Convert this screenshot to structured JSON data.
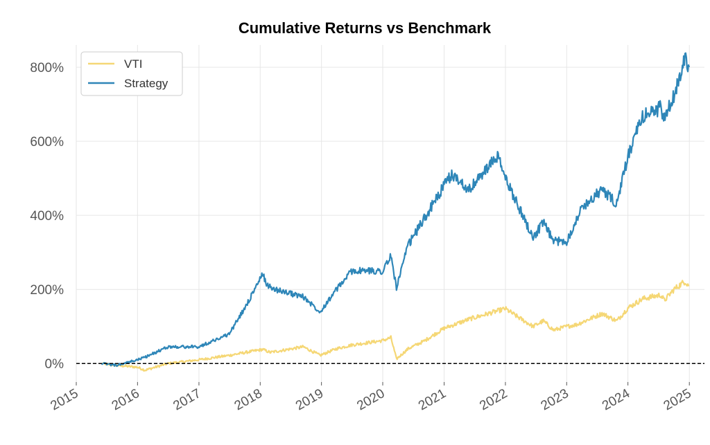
{
  "chart_data": {
    "type": "line",
    "title": "Cumulative Returns vs Benchmark",
    "xlabel": "",
    "ylabel": "",
    "x_ticks": [
      "2015",
      "2016",
      "2017",
      "2018",
      "2019",
      "2020",
      "2021",
      "2022",
      "2023",
      "2024",
      "2025"
    ],
    "y_ticks": [
      "0%",
      "200%",
      "400%",
      "600%",
      "800%"
    ],
    "xlim": [
      "2015-01-01",
      "2025-04-01"
    ],
    "ylim": [
      -50,
      860
    ],
    "grid": true,
    "legend": {
      "placement": "top-left"
    },
    "baseline": 0,
    "series": [
      {
        "name": "VTI",
        "color": "#f5d775",
        "x": [
          "2015-06-01",
          "2015-09-01",
          "2016-01-01",
          "2016-02-15",
          "2016-07-01",
          "2017-01-01",
          "2017-07-01",
          "2018-01-15",
          "2018-03-01",
          "2018-09-15",
          "2018-12-24",
          "2019-04-01",
          "2019-07-01",
          "2020-01-01",
          "2020-02-19",
          "2020-03-23",
          "2020-06-01",
          "2020-09-01",
          "2021-01-01",
          "2021-06-01",
          "2021-12-31",
          "2022-03-01",
          "2022-06-15",
          "2022-08-15",
          "2022-10-15",
          "2023-01-01",
          "2023-03-01",
          "2023-07-31",
          "2023-10-27",
          "2024-01-01",
          "2024-03-31",
          "2024-07-15",
          "2024-08-05",
          "2024-10-01",
          "2024-12-06",
          "2024-12-31"
        ],
        "values": [
          0,
          -5,
          -10,
          -18,
          0,
          10,
          22,
          38,
          30,
          45,
          22,
          40,
          50,
          62,
          70,
          12,
          40,
          60,
          95,
          120,
          148,
          130,
          100,
          115,
          90,
          100,
          105,
          135,
          115,
          150,
          175,
          185,
          170,
          200,
          222,
          210
        ]
      },
      {
        "name": "Strategy",
        "color": "#2e86b8",
        "x": [
          "2015-06-01",
          "2015-09-01",
          "2016-01-01",
          "2016-03-01",
          "2016-07-01",
          "2017-01-01",
          "2017-07-01",
          "2017-10-01",
          "2018-01-15",
          "2018-02-15",
          "2018-04-01",
          "2018-09-15",
          "2018-12-24",
          "2019-04-01",
          "2019-07-01",
          "2019-10-01",
          "2020-01-01",
          "2020-02-19",
          "2020-03-23",
          "2020-06-01",
          "2021-01-01",
          "2021-02-15",
          "2021-06-01",
          "2021-11-15",
          "2022-01-01",
          "2022-06-15",
          "2022-08-15",
          "2022-10-15",
          "2023-01-01",
          "2023-04-01",
          "2023-07-31",
          "2023-10-27",
          "2024-01-01",
          "2024-04-01",
          "2024-07-15",
          "2024-08-05",
          "2024-10-01",
          "2024-12-06",
          "2024-12-31"
        ],
        "values": [
          0,
          -5,
          10,
          20,
          45,
          45,
          80,
          150,
          240,
          210,
          200,
          180,
          140,
          200,
          250,
          250,
          250,
          290,
          205,
          320,
          480,
          510,
          470,
          560,
          500,
          340,
          380,
          330,
          330,
          420,
          470,
          430,
          560,
          670,
          690,
          660,
          720,
          830,
          800
        ]
      }
    ]
  }
}
